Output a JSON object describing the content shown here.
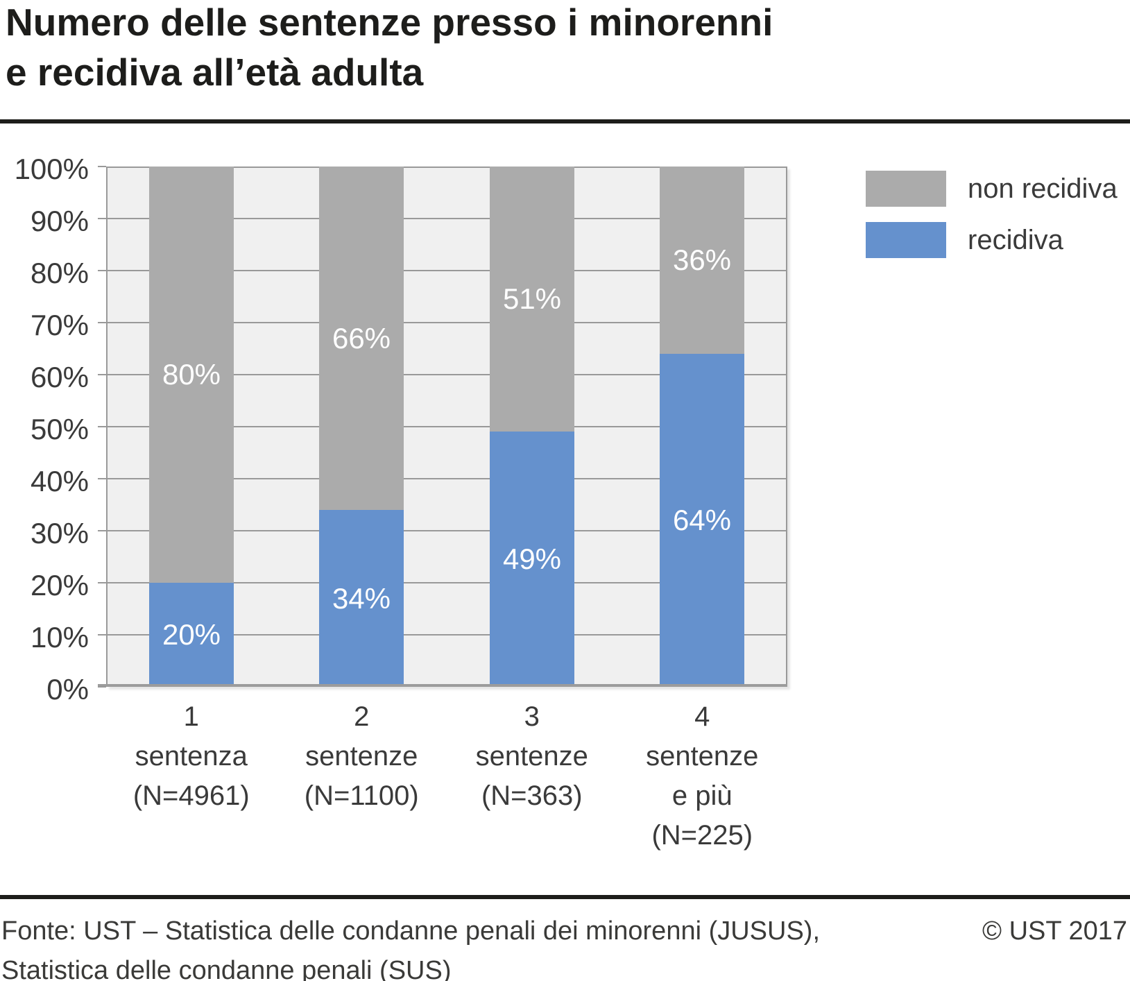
{
  "header": {
    "title": "Numero delle sentenze presso i minorenni\ne recidiva all’età adulta"
  },
  "legend": {
    "items": [
      {
        "label": "non recidiva",
        "color": "#ababab"
      },
      {
        "label": "recidiva",
        "color": "#6591cd"
      }
    ]
  },
  "chart_data": {
    "type": "bar",
    "stacked": true,
    "title": "Numero delle sentenze presso i minorenni e recidiva all’età adulta",
    "categories": [
      "1\nsentenza\n(N=4961)",
      "2\nsentenze\n(N=1100)",
      "3\nsentenze\n(N=363)",
      "4\nsentenze\ne più\n(N=225)"
    ],
    "series": [
      {
        "name": "recidiva",
        "color": "#6591cd",
        "values": [
          20,
          34,
          49,
          64
        ]
      },
      {
        "name": "non recidiva",
        "color": "#ababab",
        "values": [
          80,
          66,
          51,
          36
        ]
      }
    ],
    "value_suffix": "%",
    "ylabel": "",
    "xlabel": "",
    "y_axis": {
      "min": 0,
      "max": 100,
      "step": 10,
      "suffix": "%"
    },
    "grid": true,
    "legend_position": "top-right",
    "plot_background": "#f0f0f0",
    "gridline_color": "#999999"
  },
  "footer": {
    "source": "Fonte: UST – Statistica delle condanne penali dei minorenni (JUSUS),\nStatistica delle condanne penali (SUS)",
    "copyright": "© UST 2017"
  }
}
